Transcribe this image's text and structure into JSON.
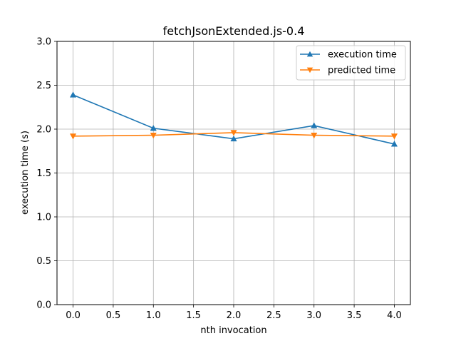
{
  "chart_data": {
    "type": "line",
    "title": "fetchJsonExtended.js-0.4",
    "xlabel": "nth invocation",
    "ylabel": "execution time (s)",
    "xlim": [
      -0.2,
      4.2
    ],
    "ylim": [
      0.0,
      3.0
    ],
    "xticks": [
      0.0,
      0.5,
      1.0,
      1.5,
      2.0,
      2.5,
      3.0,
      3.5,
      4.0
    ],
    "xtick_labels": [
      "0.0",
      "0.5",
      "1.0",
      "1.5",
      "2.0",
      "2.5",
      "3.0",
      "3.5",
      "4.0"
    ],
    "yticks": [
      0.0,
      0.5,
      1.0,
      1.5,
      2.0,
      2.5,
      3.0
    ],
    "ytick_labels": [
      "0.0",
      "0.5",
      "1.0",
      "1.5",
      "2.0",
      "2.5",
      "3.0"
    ],
    "grid": true,
    "legend_position": "top-right",
    "x": [
      0,
      1,
      2,
      3,
      4
    ],
    "series": [
      {
        "name": "execution time",
        "color": "#1f77b4",
        "marker": "triangle-up",
        "values": [
          2.39,
          2.01,
          1.89,
          2.04,
          1.83
        ]
      },
      {
        "name": "predicted time",
        "color": "#ff7f0e",
        "marker": "triangle-down",
        "values": [
          1.92,
          1.93,
          1.96,
          1.93,
          1.92
        ]
      }
    ]
  }
}
